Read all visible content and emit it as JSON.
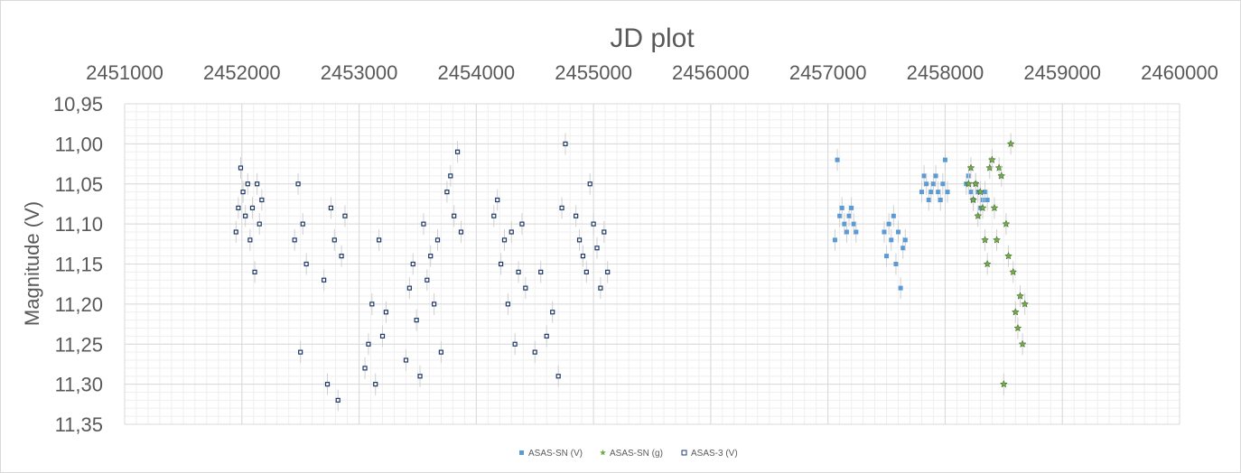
{
  "chart_data": {
    "type": "scatter",
    "title": "JD plot",
    "xlabel": "",
    "ylabel": "Magnitude (V)",
    "xlim": [
      2451000,
      2460000
    ],
    "ylim": [
      10.95,
      11.35
    ],
    "y_reversed": true,
    "x_axis_position": "top",
    "grid": true,
    "minor_grid": true,
    "legend_placement": "bottom",
    "x_ticks": [
      "2451000",
      "2452000",
      "2453000",
      "2454000",
      "2455000",
      "2456000",
      "2457000",
      "2458000",
      "2459000",
      "2460000"
    ],
    "y_ticks": [
      "10,95",
      "11,00",
      "11,05",
      "11,10",
      "11,15",
      "11,20",
      "11,25",
      "11,30",
      "11,35"
    ],
    "series": [
      {
        "name": "ASAS-SN (V)",
        "color": "#5b9bd5",
        "marker": "filled-square",
        "x": [
          2457060,
          2457080,
          2457100,
          2457120,
          2457140,
          2457160,
          2457180,
          2457200,
          2457220,
          2457240,
          2457480,
          2457500,
          2457520,
          2457540,
          2457560,
          2457580,
          2457600,
          2457620,
          2457640,
          2457660,
          2457800,
          2457820,
          2457840,
          2457860,
          2457880,
          2457900,
          2457920,
          2457940,
          2457960,
          2457980,
          2458000,
          2458020,
          2458180,
          2458200,
          2458220,
          2458240,
          2458260,
          2458280,
          2458300,
          2458320,
          2458340,
          2458360
        ],
        "y": [
          11.12,
          11.02,
          11.09,
          11.08,
          11.1,
          11.11,
          11.09,
          11.08,
          11.1,
          11.11,
          11.11,
          11.14,
          11.1,
          11.12,
          11.09,
          11.15,
          11.11,
          11.18,
          11.13,
          11.12,
          11.06,
          11.04,
          11.05,
          11.07,
          11.06,
          11.05,
          11.04,
          11.06,
          11.07,
          11.05,
          11.02,
          11.06,
          11.05,
          11.04,
          11.06,
          11.07,
          11.05,
          11.06,
          11.08,
          11.07,
          11.06,
          11.07
        ]
      },
      {
        "name": "ASAS-SN (g)",
        "color": "#70ad47",
        "marker": "star",
        "x": [
          2458200,
          2458220,
          2458240,
          2458260,
          2458280,
          2458300,
          2458320,
          2458340,
          2458360,
          2458380,
          2458400,
          2458420,
          2458440,
          2458460,
          2458480,
          2458500,
          2458520,
          2458540,
          2458560,
          2458580,
          2458600,
          2458620,
          2458640,
          2458660,
          2458680
        ],
        "y": [
          11.05,
          11.03,
          11.07,
          11.05,
          11.09,
          11.06,
          11.08,
          11.12,
          11.15,
          11.03,
          11.02,
          11.08,
          11.12,
          11.03,
          11.04,
          11.3,
          11.1,
          11.14,
          11.0,
          11.16,
          11.21,
          11.23,
          11.19,
          11.25,
          11.2
        ]
      },
      {
        "name": "ASAS-3 (V)",
        "color": "#1f3864",
        "marker": "open-square",
        "x": [
          2451950,
          2451970,
          2451990,
          2452010,
          2452030,
          2452050,
          2452070,
          2452090,
          2452110,
          2452130,
          2452150,
          2452170,
          2452450,
          2452480,
          2452500,
          2452520,
          2452550,
          2452700,
          2452730,
          2452760,
          2452790,
          2452820,
          2452850,
          2452880,
          2453050,
          2453080,
          2453110,
          2453140,
          2453170,
          2453200,
          2453230,
          2453400,
          2453430,
          2453460,
          2453490,
          2453520,
          2453550,
          2453580,
          2453610,
          2453640,
          2453670,
          2453700,
          2453750,
          2453780,
          2453810,
          2453840,
          2453870,
          2454150,
          2454180,
          2454210,
          2454240,
          2454270,
          2454300,
          2454330,
          2454360,
          2454390,
          2454420,
          2454500,
          2454550,
          2454600,
          2454650,
          2454700,
          2454730,
          2454760,
          2454850,
          2454880,
          2454910,
          2454940,
          2454970,
          2455000,
          2455030,
          2455060,
          2455090,
          2455120
        ],
        "y": [
          11.11,
          11.08,
          11.03,
          11.06,
          11.09,
          11.05,
          11.12,
          11.08,
          11.16,
          11.05,
          11.1,
          11.07,
          11.12,
          11.05,
          11.26,
          11.1,
          11.15,
          11.17,
          11.3,
          11.08,
          11.12,
          11.32,
          11.14,
          11.09,
          11.28,
          11.25,
          11.2,
          11.3,
          11.12,
          11.24,
          11.21,
          11.27,
          11.18,
          11.15,
          11.22,
          11.29,
          11.1,
          11.17,
          11.14,
          11.2,
          11.12,
          11.26,
          11.06,
          11.04,
          11.09,
          11.01,
          11.11,
          11.09,
          11.07,
          11.15,
          11.12,
          11.2,
          11.11,
          11.25,
          11.16,
          11.1,
          11.18,
          11.26,
          11.16,
          11.24,
          11.21,
          11.29,
          11.08,
          11.0,
          11.09,
          11.12,
          11.14,
          11.16,
          11.05,
          11.1,
          11.13,
          11.18,
          11.11,
          11.16
        ]
      }
    ]
  }
}
